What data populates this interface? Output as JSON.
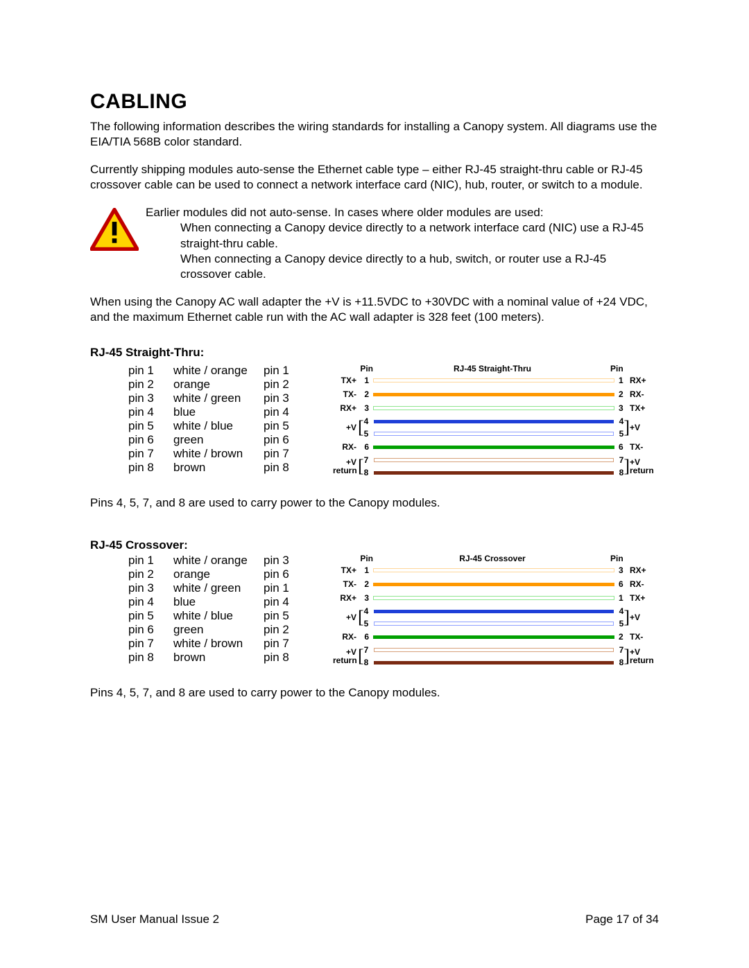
{
  "heading": "CABLING",
  "para1": "The following information describes the wiring standards for installing a Canopy system.  All diagrams use the EIA/TIA 568B color standard.",
  "para2": "Currently shipping modules auto-sense the Ethernet cable type – either RJ-45 straight-thru cable or RJ-45 crossover cable can be used to connect a network interface card (NIC), hub, router, or switch to a module.",
  "warn_intro": "Earlier modules did not auto-sense. In cases where older modules are used:",
  "warn_line1": "When connecting a Canopy device directly to a network interface card (NIC) use a RJ-45 straight-thru cable.",
  "warn_line2": "When connecting a Canopy device directly to a hub, switch, or router use a RJ-45 crossover cable.",
  "para3": "When using the Canopy AC wall adapter the +V is +11.5VDC to +30VDC with a nominal value of +24 VDC, and the maximum Ethernet cable run with the AC wall adapter is 328 feet (100 meters).",
  "straight_label": "RJ-45 Straight-Thru:",
  "crossover_label": "RJ-45 Crossover:",
  "note_power": "Pins 4, 5, 7, and 8 are used to carry power to the Canopy modules.",
  "straight_table": [
    {
      "a": "pin 1",
      "c": "white / orange",
      "b": "pin 1"
    },
    {
      "a": "pin 2",
      "c": "orange",
      "b": "pin 2"
    },
    {
      "a": "pin 3",
      "c": "white / green",
      "b": "pin 3"
    },
    {
      "a": "pin 4",
      "c": "blue",
      "b": "pin 4"
    },
    {
      "a": "pin 5",
      "c": "white / blue",
      "b": "pin 5"
    },
    {
      "a": "pin 6",
      "c": "green",
      "b": "pin 6"
    },
    {
      "a": "pin 7",
      "c": "white / brown",
      "b": "pin 7"
    },
    {
      "a": "pin 8",
      "c": "brown",
      "b": "pin 8"
    }
  ],
  "crossover_table": [
    {
      "a": "pin 1",
      "c": "white / orange",
      "b": "pin 3"
    },
    {
      "a": "pin 2",
      "c": "orange",
      "b": "pin 6"
    },
    {
      "a": "pin 3",
      "c": "white / green",
      "b": "pin 1"
    },
    {
      "a": "pin 4",
      "c": "blue",
      "b": "pin 4"
    },
    {
      "a": "pin 5",
      "c": "white / blue",
      "b": "pin 5"
    },
    {
      "a": "pin 6",
      "c": "green",
      "b": "pin 2"
    },
    {
      "a": "pin 7",
      "c": "white / brown",
      "b": "pin 7"
    },
    {
      "a": "pin 8",
      "c": "brown",
      "b": "pin 8"
    }
  ],
  "diagram_straight": {
    "title": "RJ-45 Straight-Thru",
    "pin_header": "Pin",
    "rows": [
      {
        "ll": "TX+",
        "lp": "1",
        "color": "#ffd699",
        "stripe": true,
        "rp": "1",
        "rl": "RX+"
      },
      {
        "ll": "TX-",
        "lp": "2",
        "color": "#ff9800",
        "stripe": false,
        "rp": "2",
        "rl": "RX-"
      },
      {
        "ll": "RX+",
        "lp": "3",
        "color": "#8ee68e",
        "stripe": true,
        "rp": "3",
        "rl": "TX+"
      }
    ],
    "group1": {
      "label": "+V",
      "p1": "4",
      "c1": "#1e3fd8",
      "p2": "5",
      "c2": "#8ea0ff",
      "stripe2": true,
      "rlabel": "+V"
    },
    "row6": {
      "ll": "RX-",
      "lp": "6",
      "color": "#00a000",
      "stripe": false,
      "rp": "6",
      "rl": "TX-"
    },
    "group2": {
      "label": "+V return",
      "p1": "7",
      "c1": "#d6a07a",
      "stripe1": true,
      "p2": "8",
      "c2": "#7a2a12",
      "rlabel": "+V return"
    }
  },
  "diagram_crossover": {
    "title": "RJ-45 Crossover",
    "pin_header": "Pin",
    "rows": [
      {
        "ll": "TX+",
        "lp": "1",
        "color": "#ffd699",
        "stripe": true,
        "rp": "3",
        "rl": "RX+"
      },
      {
        "ll": "TX-",
        "lp": "2",
        "color": "#ff9800",
        "stripe": false,
        "rp": "6",
        "rl": "RX-"
      },
      {
        "ll": "RX+",
        "lp": "3",
        "color": "#8ee68e",
        "stripe": true,
        "rp": "1",
        "rl": "TX+"
      }
    ],
    "group1": {
      "label": "+V",
      "p1": "4",
      "c1": "#1e3fd8",
      "p2": "5",
      "c2": "#8ea0ff",
      "stripe2": true,
      "rlabel": "+V"
    },
    "row6": {
      "ll": "RX-",
      "lp": "6",
      "color": "#00a000",
      "stripe": false,
      "rp": "2",
      "rl": "TX-"
    },
    "group2": {
      "label": "+V return",
      "p1": "7",
      "c1": "#d6a07a",
      "stripe1": true,
      "p2": "8",
      "c2": "#7a2a12",
      "rlabel": "+V return"
    }
  },
  "footer_left": "SM User Manual Issue 2",
  "footer_right": "Page 17 of 34",
  "warn_triangle": {
    "border": "#c00000",
    "fill": "#ffd400",
    "bang": "#000000"
  }
}
